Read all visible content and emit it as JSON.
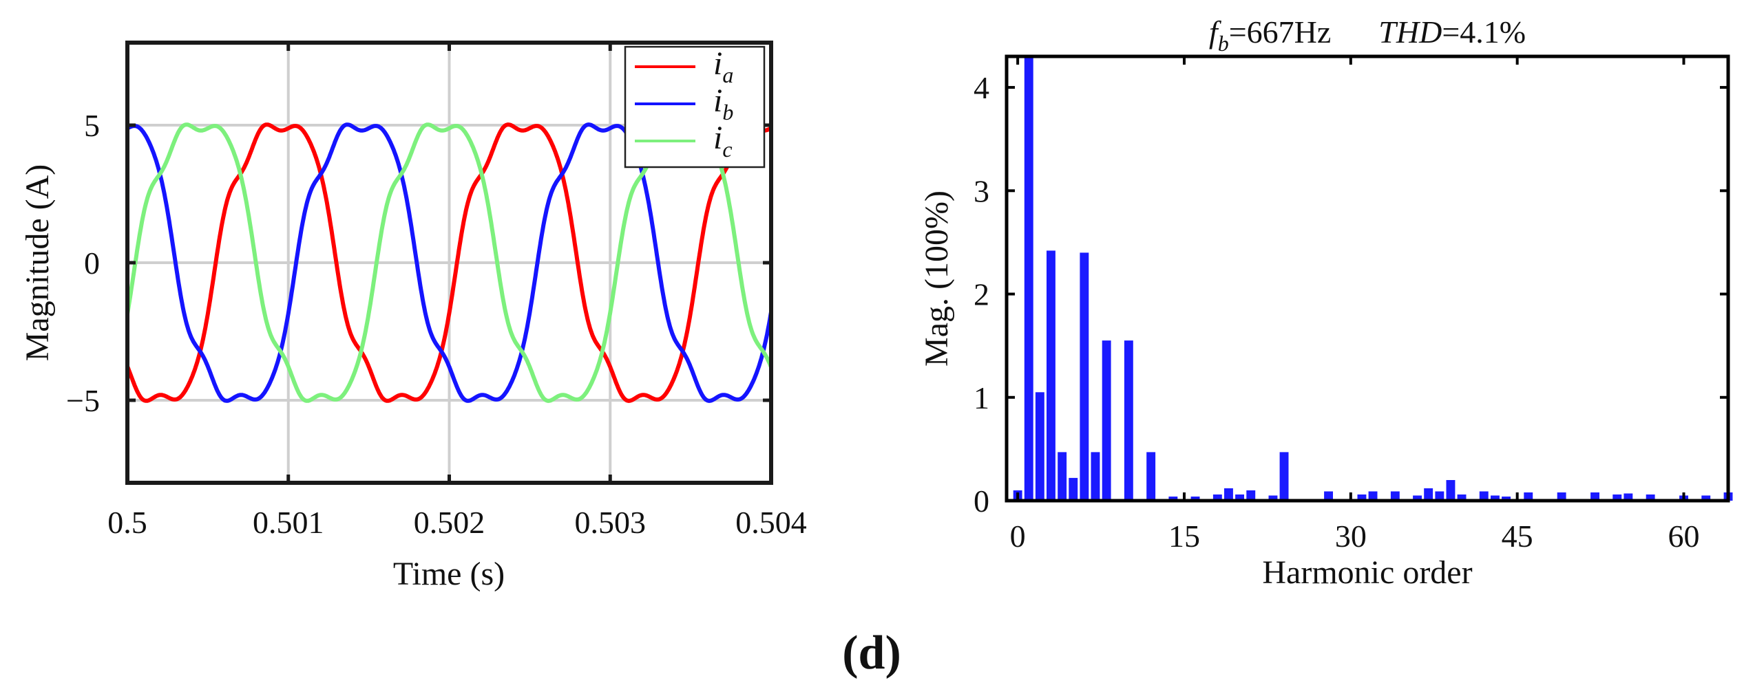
{
  "caption": "(d)",
  "chart_data": [
    {
      "type": "line",
      "title": "",
      "xlabel": "Time (s)",
      "ylabel": "Magnitude (A)",
      "xlim": [
        0.5,
        0.504
      ],
      "ylim": [
        -8,
        8
      ],
      "xticks": [
        0.5,
        0.501,
        0.502,
        0.503,
        0.504
      ],
      "xtick_labels": [
        "0.5",
        "0.501",
        "0.502",
        "0.503",
        "0.504"
      ],
      "yticks": [
        5,
        0,
        -5
      ],
      "ytick_labels": [
        "5",
        "0",
        "−5"
      ],
      "grid": true,
      "legend_position": "top-right",
      "amplitude_A": 5.5,
      "fundamental_hz": 667,
      "series": [
        {
          "name": "i_a",
          "label_main": "i",
          "label_sub": "a",
          "color": "#ff0000",
          "phase_deg": -135
        },
        {
          "name": "i_b",
          "label_main": "i",
          "label_sub": "b",
          "color": "#1414ff",
          "phase_deg": 105
        },
        {
          "name": "i_c",
          "label_main": "i",
          "label_sub": "c",
          "color": "#7df07d",
          "phase_deg": -15
        }
      ]
    },
    {
      "type": "bar",
      "title_parts": [
        {
          "text": "f",
          "style": "italic"
        },
        {
          "text": "b",
          "style": "sub-italic"
        },
        {
          "text": "=667Hz",
          "style": "normal"
        },
        {
          "text": "      ",
          "style": "normal"
        },
        {
          "text": "THD",
          "style": "italic"
        },
        {
          "text": "=4.1%",
          "style": "normal"
        }
      ],
      "xlabel": "Harmonic order",
      "ylabel": "Mag. (100%)",
      "xlim": [
        -1,
        64
      ],
      "ylim": [
        0,
        4.3
      ],
      "xticks": [
        0,
        15,
        30,
        45,
        60
      ],
      "yticks": [
        0,
        1,
        2,
        3,
        4
      ],
      "bar_color": "#1a1aff",
      "bars": [
        {
          "h": 0,
          "v": 0.1
        },
        {
          "h": 1,
          "v": 4.3
        },
        {
          "h": 2,
          "v": 1.05
        },
        {
          "h": 3,
          "v": 2.42
        },
        {
          "h": 4,
          "v": 0.47
        },
        {
          "h": 5,
          "v": 0.22
        },
        {
          "h": 6,
          "v": 2.4
        },
        {
          "h": 7,
          "v": 0.47
        },
        {
          "h": 8,
          "v": 1.55
        },
        {
          "h": 10,
          "v": 1.55
        },
        {
          "h": 12,
          "v": 0.47
        },
        {
          "h": 14,
          "v": 0.04
        },
        {
          "h": 16,
          "v": 0.04
        },
        {
          "h": 18,
          "v": 0.06
        },
        {
          "h": 19,
          "v": 0.12
        },
        {
          "h": 20,
          "v": 0.06
        },
        {
          "h": 21,
          "v": 0.1
        },
        {
          "h": 23,
          "v": 0.05
        },
        {
          "h": 24,
          "v": 0.47
        },
        {
          "h": 28,
          "v": 0.09
        },
        {
          "h": 31,
          "v": 0.06
        },
        {
          "h": 32,
          "v": 0.09
        },
        {
          "h": 34,
          "v": 0.09
        },
        {
          "h": 36,
          "v": 0.05
        },
        {
          "h": 37,
          "v": 0.12
        },
        {
          "h": 38,
          "v": 0.09
        },
        {
          "h": 39,
          "v": 0.2
        },
        {
          "h": 40,
          "v": 0.06
        },
        {
          "h": 42,
          "v": 0.09
        },
        {
          "h": 43,
          "v": 0.05
        },
        {
          "h": 44,
          "v": 0.04
        },
        {
          "h": 46,
          "v": 0.08
        },
        {
          "h": 49,
          "v": 0.08
        },
        {
          "h": 52,
          "v": 0.08
        },
        {
          "h": 54,
          "v": 0.06
        },
        {
          "h": 55,
          "v": 0.07
        },
        {
          "h": 57,
          "v": 0.06
        },
        {
          "h": 60,
          "v": 0.05
        },
        {
          "h": 62,
          "v": 0.05
        },
        {
          "h": 64,
          "v": 0.08
        }
      ]
    }
  ]
}
